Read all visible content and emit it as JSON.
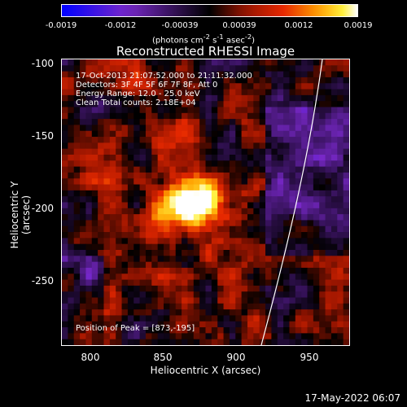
{
  "colorbar": {
    "ticks": [
      "-0.0019",
      "-0.0012",
      "-0.00039",
      "0.00039",
      "0.0012",
      "0.0019"
    ],
    "units_prefix": "(photons cm",
    "units_exp1": "-2",
    "units_mid": " s",
    "units_exp2": "-1",
    "units_mid2": " asec",
    "units_exp3": "-2",
    "units_suffix": ")"
  },
  "chart_data": {
    "type": "heatmap",
    "title": "Reconstructed RHESSI Image",
    "xlabel": "Heliocentric X (arcsec)",
    "ylabel": "Heliocentric Y (arcsec)",
    "xlim": [
      780,
      975
    ],
    "ylim": [
      -290,
      -97
    ],
    "x_ticks": [
      "800",
      "850",
      "900",
      "950"
    ],
    "y_ticks": [
      "-100",
      "-150",
      "-200",
      "-250"
    ],
    "clim": [
      -0.0019,
      0.0019
    ],
    "peak_position": [
      873,
      -195
    ],
    "annotations": [
      "17-Oct-2013 21:07:52.000 to 21:11:32.000",
      "Detectors: 3F 4F 5F 6F 7F 8F, Att 0",
      "Energy Range: 12.0 - 25.0 keV",
      "Clean     Total counts: 2.18E+04"
    ],
    "peak_text": "Position of Peak = [873,-195]"
  },
  "datestamp": "17-May-2022 06:07"
}
